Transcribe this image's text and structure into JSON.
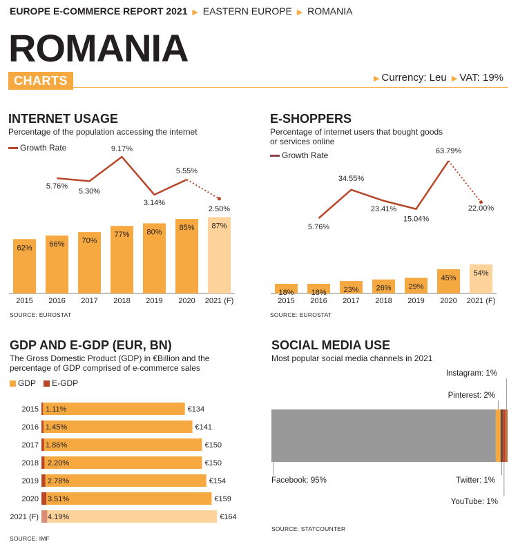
{
  "header": {
    "report_title": "EUROPE E-COMMERCE REPORT 2021",
    "crumb_region": "EASTERN EUROPE",
    "crumb_country": "ROMANIA",
    "country_name": "ROMANIA",
    "section_badge": "CHARTS",
    "currency": "Currency: Leu",
    "vat": "VAT: 19%"
  },
  "colors": {
    "bar": "#f7a941",
    "bar_forecast": "#fdd29b",
    "growth_line": "#b8472a",
    "eshop_legend": "#8e3d4f",
    "egdp": "#b8472a",
    "egdp_forecast": "#d98c76",
    "facebook": "#999999",
    "pinterest": "#f7a941",
    "twitter": "#6b4a38",
    "youtube": "#b8472a",
    "instagram": "#c07340"
  },
  "chart_data": [
    {
      "id": "internet_usage",
      "type": "bar",
      "title": "INTERNET USAGE",
      "subtitle": "Percentage of the population accessing the internet",
      "legend": "Growth Rate",
      "categories": [
        "2015",
        "2016",
        "2017",
        "2018",
        "2019",
        "2020",
        "2021 (F)"
      ],
      "values": [
        62,
        66,
        70,
        77,
        80,
        85,
        87
      ],
      "value_labels": [
        "62%",
        "66%",
        "70%",
        "77%",
        "80%",
        "85%",
        "87%"
      ],
      "growth_labels": [
        "5.76%",
        "5.30%",
        "9.17%",
        "3.14%",
        "5.55%",
        "2.50%"
      ],
      "growth": [
        5.76,
        5.3,
        9.17,
        3.14,
        5.55,
        2.5
      ],
      "forecast_last": true,
      "source": "SOURCE: EUROSTAT"
    },
    {
      "id": "e_shoppers",
      "type": "bar",
      "title": "E-SHOPPERS",
      "subtitle_lines": [
        "Percentage of internet users that bought goods",
        "or services online"
      ],
      "legend": "Growth Rate",
      "categories": [
        "2015",
        "2016",
        "2017",
        "2018",
        "2019",
        "2020",
        "2021 (F)"
      ],
      "values": [
        18,
        18,
        23,
        26,
        29,
        45,
        54
      ],
      "value_labels": [
        "18%",
        "18%",
        "23%",
        "26%",
        "29%",
        "45%",
        "54%"
      ],
      "growth_labels": [
        "5.76%",
        "34.55%",
        "23.41%",
        "15.04%",
        "63.79%",
        "22.00%"
      ],
      "growth": [
        5.76,
        34.55,
        23.41,
        15.04,
        63.79,
        22.0
      ],
      "forecast_last": true,
      "source": "SOURCE: EUROSTAT"
    },
    {
      "id": "gdp_egdp",
      "type": "bar",
      "orientation": "horizontal",
      "title": "GDP AND E-GDP (EUR, BN)",
      "subtitle_lines": [
        "The Gross Domestic Product (GDP) in €Billion and the",
        "percentage of GDP comprised of e-commerce sales"
      ],
      "legend": [
        "GDP",
        "E-GDP"
      ],
      "categories": [
        "2015",
        "2016",
        "2017",
        "2018",
        "2019",
        "2020",
        "2021 (F)"
      ],
      "gdp": [
        134,
        141,
        150,
        150,
        154,
        159,
        164
      ],
      "gdp_labels": [
        "€134",
        "€141",
        "€150",
        "€150",
        "€154",
        "€159",
        "€164"
      ],
      "egdp_pct": [
        1.11,
        1.45,
        1.86,
        2.2,
        2.78,
        3.51,
        4.19
      ],
      "egdp_labels": [
        "1.11%",
        "1.45%",
        "1.86%",
        "2.20%",
        "2.78%",
        "3.51%",
        "4.19%"
      ],
      "source": "SOURCE: IMF"
    },
    {
      "id": "social_media",
      "type": "bar",
      "orientation": "stacked-horizontal",
      "title": "SOCIAL MEDIA USE",
      "subtitle": "Most popular social media channels in 2021",
      "segments": [
        {
          "name": "Facebook",
          "value": 95,
          "label": "Facebook: 95%"
        },
        {
          "name": "Pinterest",
          "value": 2,
          "label": "Pinterest: 2%"
        },
        {
          "name": "Twitter",
          "value": 1,
          "label": "Twitter: 1%"
        },
        {
          "name": "YouTube",
          "value": 1,
          "label": "YouTube: 1%"
        },
        {
          "name": "Instagram",
          "value": 1,
          "label": "Instagram: 1%"
        }
      ],
      "source": "SOURCE: STATCOUNTER"
    }
  ]
}
